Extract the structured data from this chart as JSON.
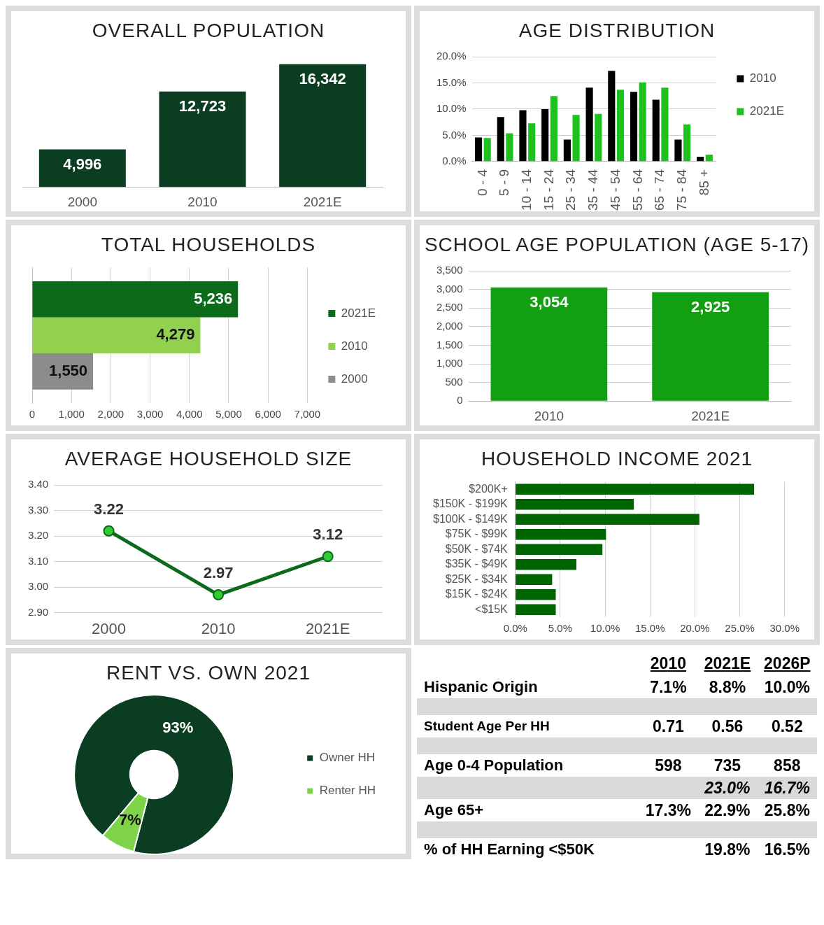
{
  "chart_data": [
    {
      "type": "bar",
      "title": "OVERALL POPULATION",
      "categories": [
        "2000",
        "2010",
        "2021E"
      ],
      "values": [
        4996,
        12723,
        16342
      ],
      "color": "#0a3d22",
      "value_labels": [
        "4,996",
        "12,723",
        "16,342"
      ]
    },
    {
      "type": "bar",
      "title": "AGE DISTRIBUTION",
      "categories": [
        "0 - 4",
        "5 - 9",
        "10 - 14",
        "15 - 24",
        "25 - 34",
        "35 - 44",
        "45 - 54",
        "55 - 64",
        "65 - 74",
        "75 - 84",
        "85 +"
      ],
      "series": [
        {
          "name": "2010",
          "color": "#000000",
          "values": [
            4.6,
            8.5,
            9.8,
            10.0,
            4.2,
            14.1,
            17.3,
            13.3,
            11.8,
            4.2,
            0.9
          ]
        },
        {
          "name": "2021E",
          "color": "#1ec21e",
          "values": [
            4.5,
            5.4,
            7.3,
            12.5,
            8.9,
            9.1,
            13.7,
            15.1,
            14.1,
            7.1,
            1.3
          ]
        }
      ],
      "ylim": [
        0,
        20
      ],
      "yticks": [
        {
          "value": 0,
          "label": "0.0%"
        },
        {
          "value": 5,
          "label": "5.0%"
        },
        {
          "value": 10,
          "label": "10.0%"
        },
        {
          "value": 15,
          "label": "15.0%"
        },
        {
          "value": 20,
          "label": "20.0%"
        }
      ],
      "grid": "y",
      "legend": "top right"
    },
    {
      "type": "bar",
      "orientation": "horizontal",
      "title": "TOTAL HOUSEHOLDS",
      "categories": [
        null
      ],
      "series": [
        {
          "name": "2021E",
          "color": "#0b6b1a",
          "values": [
            5236
          ],
          "value_labels": [
            "5,236"
          ]
        },
        {
          "name": "2010",
          "color": "#92d050",
          "values": [
            4279
          ],
          "value_labels": [
            "4,279"
          ]
        },
        {
          "name": "2000",
          "color": "#8c8c8c",
          "values": [
            1550
          ],
          "value_labels": [
            "1,550"
          ]
        }
      ],
      "xlim": [
        0,
        7000
      ],
      "xticks": [
        0,
        {
          "value": 1000,
          "label": "1,000"
        },
        {
          "value": 2000,
          "label": "2,000"
        },
        {
          "value": 3000,
          "label": "3,000"
        },
        {
          "value": 4000,
          "label": "4,000"
        },
        {
          "value": 5000,
          "label": "5,000"
        },
        {
          "value": 6000,
          "label": "6,000"
        },
        {
          "value": 7000,
          "label": "7,000"
        }
      ],
      "grid": "x",
      "legend": "right"
    },
    {
      "type": "bar",
      "title": "SCHOOL AGE POPULATION (AGE 5-17)",
      "categories": [
        "2010",
        "2021E"
      ],
      "values": [
        3054,
        2925
      ],
      "value_labels": [
        "3,054",
        "2,925"
      ],
      "color": "#12a012",
      "ylim": [
        0,
        3500
      ],
      "yticks": [
        0,
        500,
        {
          "value": 1000,
          "label": "1,000"
        },
        {
          "value": 1500,
          "label": "1,500"
        },
        {
          "value": 2000,
          "label": "2,000"
        },
        {
          "value": 2500,
          "label": "2,500"
        },
        {
          "value": 3000,
          "label": "3,000"
        },
        {
          "value": 3500,
          "label": "3,500"
        }
      ],
      "grid": "y"
    },
    {
      "type": "line",
      "title": "AVERAGE HOUSEHOLD SIZE",
      "categories": [
        "2000",
        "2010",
        "2021E"
      ],
      "values": [
        3.22,
        2.97,
        3.12
      ],
      "color": "#0b6b1a",
      "ylim": [
        2.9,
        3.4
      ],
      "yticks": [
        {
          "value": 2.9,
          "label": "2.90"
        },
        {
          "value": 3.0,
          "label": "3.00"
        },
        {
          "value": 3.1,
          "label": "3.10"
        },
        {
          "value": 3.2,
          "label": "3.20"
        },
        {
          "value": 3.3,
          "label": "3.30"
        },
        {
          "value": 3.4,
          "label": "3.40"
        }
      ],
      "grid": "y",
      "marker": "circle",
      "data_labels": true
    },
    {
      "type": "bar",
      "orientation": "horizontal",
      "title": "HOUSEHOLD INCOME 2021",
      "categories": [
        "$200K+",
        "$150K - $199K",
        "$100K - $149K",
        "$75K - $99K",
        "$50K - $74K",
        "$35K - $49K",
        "$25K - $34K",
        "$15K - $24K",
        "<$15K"
      ],
      "values": [
        26.6,
        13.2,
        20.5,
        10.1,
        9.7,
        6.8,
        4.1,
        4.5,
        4.5
      ],
      "color": "#006400",
      "xlim": [
        0,
        30
      ],
      "xticks": [
        {
          "value": 0,
          "label": "0.0%"
        },
        {
          "value": 5,
          "label": "5.0%"
        },
        {
          "value": 10,
          "label": "10.0%"
        },
        {
          "value": 15,
          "label": "15.0%"
        },
        {
          "value": 20,
          "label": "20.0%"
        },
        {
          "value": 25,
          "label": "25.0%"
        },
        {
          "value": 30,
          "label": "30.0%"
        }
      ],
      "grid": "x"
    },
    {
      "type": "donut",
      "title": "RENT VS. OWN 2021",
      "categories": [
        "Owner HH",
        "Renter HH"
      ],
      "values": [
        93,
        7
      ],
      "colors": [
        "#0a3d22",
        "#7ed348"
      ],
      "value_labels": [
        "93%",
        "7%"
      ],
      "legend": "right"
    },
    {
      "type": "other",
      "categories": [
        "2010",
        "2021E",
        "2026P"
      ],
      "y_categories": [
        "Hispanic Origin",
        "Student Age Per HH",
        "Age 0-4 Population",
        null,
        "Age 65+",
        "% of HH Earning <$50K"
      ],
      "cell_labels": [
        [
          "7.1%",
          "8.8%",
          "10.0%"
        ],
        [
          "0.71",
          "0.56",
          "0.52"
        ],
        [
          "598",
          "735",
          "858"
        ],
        [
          null,
          "23.0%",
          "16.7%"
        ],
        [
          "17.3%",
          "22.9%",
          "25.8%"
        ],
        [
          null,
          "19.8%",
          "16.5%"
        ]
      ]
    }
  ]
}
